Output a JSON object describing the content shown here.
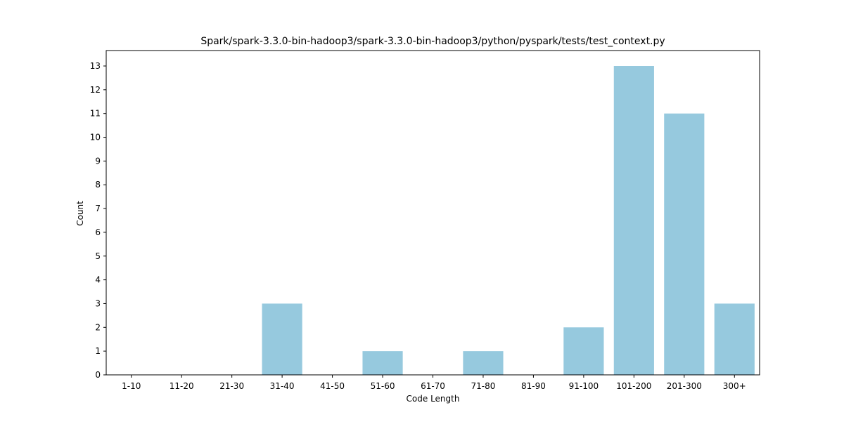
{
  "chart_data": {
    "type": "bar",
    "title": "Spark/spark-3.3.0-bin-hadoop3/spark-3.3.0-bin-hadoop3/python/pyspark/tests/test_context.py",
    "xlabel": "Code Length",
    "ylabel": "Count",
    "categories": [
      "1-10",
      "11-20",
      "21-30",
      "31-40",
      "41-50",
      "51-60",
      "61-70",
      "71-80",
      "81-90",
      "91-100",
      "101-200",
      "201-300",
      "300+"
    ],
    "values": [
      0,
      0,
      0,
      3,
      0,
      1,
      0,
      1,
      0,
      2,
      13,
      11,
      3
    ],
    "ylim": [
      0,
      13.65
    ],
    "yticks": [
      0,
      1,
      2,
      3,
      4,
      5,
      6,
      7,
      8,
      9,
      10,
      11,
      12,
      13
    ],
    "bar_color": "#96c9de",
    "grid": false,
    "legend": "none"
  }
}
